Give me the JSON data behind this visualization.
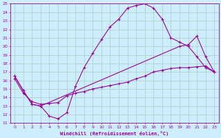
{
  "xlabel": "Windchill (Refroidissement éolien,°C)",
  "bg_color": "#cceeff",
  "line_color": "#990099",
  "grid_color": "#aaddcc",
  "xlim": [
    -0.5,
    23.5
  ],
  "ylim": [
    11,
    25
  ],
  "xticks": [
    0,
    1,
    2,
    3,
    4,
    5,
    6,
    7,
    8,
    9,
    10,
    11,
    12,
    13,
    14,
    15,
    16,
    17,
    18,
    19,
    20,
    21,
    22,
    23
  ],
  "yticks": [
    11,
    12,
    13,
    14,
    15,
    16,
    17,
    18,
    19,
    20,
    21,
    22,
    23,
    24,
    25
  ],
  "line1_x": [
    0,
    1,
    2,
    3,
    4,
    5,
    6,
    7,
    8,
    9,
    10,
    11,
    12,
    13,
    14,
    15,
    16,
    17,
    18,
    19,
    20,
    21,
    22,
    23
  ],
  "line1_y": [
    16.5,
    14.8,
    13.2,
    13.0,
    11.8,
    11.5,
    12.2,
    15.3,
    17.5,
    19.2,
    20.8,
    22.3,
    23.2,
    24.5,
    24.8,
    25.0,
    24.5,
    23.2,
    21.0,
    20.5,
    20.0,
    18.8,
    17.5,
    17.0
  ],
  "line2_x": [
    0,
    1,
    2,
    3,
    19,
    20,
    21,
    22,
    23
  ],
  "line2_y": [
    16.5,
    14.8,
    13.2,
    13.0,
    20.0,
    20.2,
    21.2,
    18.8,
    17.0
  ],
  "line3_x": [
    0,
    1,
    2,
    3,
    4,
    5,
    6,
    7,
    8,
    9,
    10,
    11,
    12,
    13,
    14,
    15,
    16,
    17,
    18,
    19,
    20,
    21,
    22,
    23
  ],
  "line3_y": [
    16.2,
    14.5,
    13.5,
    13.2,
    13.3,
    13.4,
    14.2,
    14.5,
    14.7,
    15.0,
    15.2,
    15.4,
    15.6,
    15.8,
    16.2,
    16.5,
    17.0,
    17.2,
    17.4,
    17.5,
    17.5,
    17.6,
    17.7,
    17.0
  ]
}
